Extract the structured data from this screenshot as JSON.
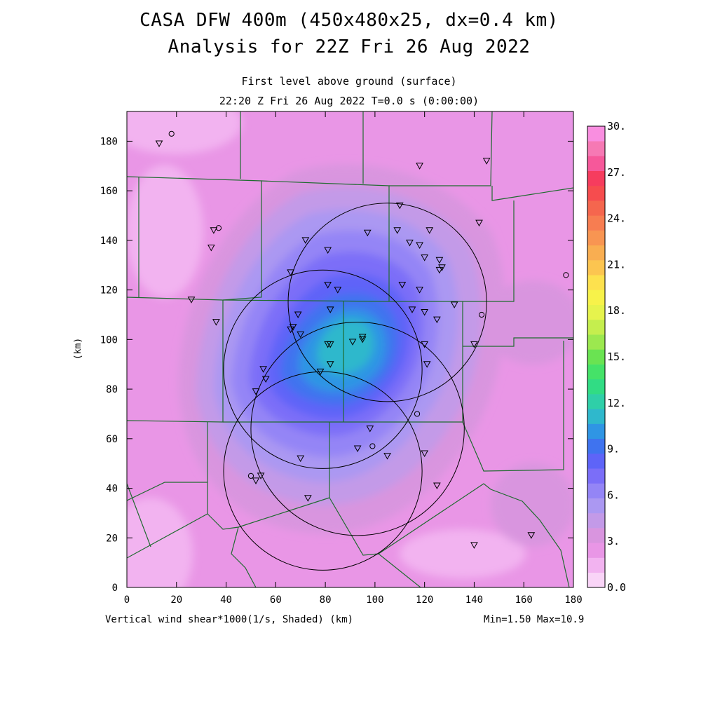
{
  "title_line1": "CASA DFW 400m (450x480x25, dx=0.4 km)",
  "title_line2": "Analysis for 22Z Fri 26 Aug 2022",
  "subtitle_line1": "First level above ground (surface)",
  "subtitle_line2": "22:20 Z Fri 26 Aug 2022   T=0.0 s (0:00:00)",
  "footer_left": "Vertical wind shear*1000(1/s, Shaded)  (km)",
  "footer_right": "Min=1.50 Max=10.9",
  "y_axis_label": "(km)",
  "x_ticks": [
    "0",
    "20",
    "40",
    "60",
    "80",
    "100",
    "120",
    "140",
    "160",
    "180"
  ],
  "y_ticks": [
    "0",
    "20",
    "40",
    "60",
    "80",
    "100",
    "120",
    "140",
    "160",
    "180"
  ],
  "colorbar": {
    "labels": [
      "30.",
      "27.",
      "24.",
      "21.",
      "18.",
      "15.",
      "12.",
      "9.",
      "6.",
      "3.",
      "0.0"
    ],
    "colors": [
      "#f9d4f7",
      "#f2b3f0",
      "#e996e6",
      "#d995df",
      "#c39ae8",
      "#ab98f2",
      "#9485f6",
      "#7b6ef8",
      "#5e64f8",
      "#3f73ef",
      "#2f95e4",
      "#2fb8cc",
      "#2fcfa8",
      "#31dc84",
      "#45e268",
      "#6ae352",
      "#9ce84f",
      "#c5ee4e",
      "#e6f34d",
      "#f7f24a",
      "#fde14e",
      "#fcc550",
      "#f9ae51",
      "#f89552",
      "#f77d51",
      "#f5664e",
      "#f64c4e",
      "#f63c5e",
      "#f6589a",
      "#f679b4",
      "#f98ee0"
    ]
  },
  "radar_rings": [
    {
      "x": 79,
      "y": 47,
      "r": 40
    },
    {
      "x": 79,
      "y": 88,
      "r": 40
    },
    {
      "x": 105,
      "y": 115,
      "r": 40
    },
    {
      "x": 93,
      "y": 64,
      "r": 43
    }
  ],
  "stations": [
    {
      "x": 13,
      "y": 179,
      "s": "tri"
    },
    {
      "x": 18,
      "y": 183,
      "s": "circ"
    },
    {
      "x": 35,
      "y": 144,
      "s": "tri"
    },
    {
      "x": 37,
      "y": 145,
      "s": "circ"
    },
    {
      "x": 34,
      "y": 137,
      "s": "tri"
    },
    {
      "x": 26,
      "y": 116,
      "s": "tri"
    },
    {
      "x": 36,
      "y": 107,
      "s": "tri"
    },
    {
      "x": 66,
      "y": 127,
      "s": "tri"
    },
    {
      "x": 72,
      "y": 140,
      "s": "tri"
    },
    {
      "x": 81,
      "y": 136,
      "s": "tri"
    },
    {
      "x": 97,
      "y": 143,
      "s": "tri"
    },
    {
      "x": 110,
      "y": 154,
      "s": "tri"
    },
    {
      "x": 118,
      "y": 170,
      "s": "tri"
    },
    {
      "x": 145,
      "y": 172,
      "s": "tri"
    },
    {
      "x": 142,
      "y": 147,
      "s": "tri"
    },
    {
      "x": 109,
      "y": 144,
      "s": "tri"
    },
    {
      "x": 114,
      "y": 139,
      "s": "tri"
    },
    {
      "x": 118,
      "y": 138,
      "s": "tri"
    },
    {
      "x": 122,
      "y": 144,
      "s": "tri"
    },
    {
      "x": 120,
      "y": 133,
      "s": "tri"
    },
    {
      "x": 126,
      "y": 132,
      "s": "tri"
    },
    {
      "x": 126,
      "y": 128,
      "s": "tri"
    },
    {
      "x": 127,
      "y": 129,
      "s": "tri"
    },
    {
      "x": 111,
      "y": 122,
      "s": "tri"
    },
    {
      "x": 118,
      "y": 120,
      "s": "tri"
    },
    {
      "x": 81,
      "y": 122,
      "s": "tri"
    },
    {
      "x": 85,
      "y": 120,
      "s": "tri"
    },
    {
      "x": 69,
      "y": 110,
      "s": "tri"
    },
    {
      "x": 82,
      "y": 112,
      "s": "tri"
    },
    {
      "x": 115,
      "y": 112,
      "s": "tri"
    },
    {
      "x": 120,
      "y": 111,
      "s": "tri"
    },
    {
      "x": 125,
      "y": 108,
      "s": "tri"
    },
    {
      "x": 132,
      "y": 114,
      "s": "tri"
    },
    {
      "x": 143,
      "y": 110,
      "s": "circ"
    },
    {
      "x": 66,
      "y": 104,
      "s": "tri"
    },
    {
      "x": 67,
      "y": 105,
      "s": "tri"
    },
    {
      "x": 70,
      "y": 102,
      "s": "tri"
    },
    {
      "x": 81,
      "y": 98,
      "s": "tri"
    },
    {
      "x": 82,
      "y": 98,
      "s": "tri"
    },
    {
      "x": 91,
      "y": 99,
      "s": "tri"
    },
    {
      "x": 95,
      "y": 101,
      "s": "tri"
    },
    {
      "x": 95,
      "y": 100,
      "s": "tri"
    },
    {
      "x": 120,
      "y": 98,
      "s": "tri"
    },
    {
      "x": 140,
      "y": 98,
      "s": "tri"
    },
    {
      "x": 82,
      "y": 90,
      "s": "tri"
    },
    {
      "x": 78,
      "y": 87,
      "s": "tri"
    },
    {
      "x": 121,
      "y": 90,
      "s": "tri"
    },
    {
      "x": 55,
      "y": 88,
      "s": "tri"
    },
    {
      "x": 56,
      "y": 84,
      "s": "tri"
    },
    {
      "x": 52,
      "y": 79,
      "s": "tri"
    },
    {
      "x": 117,
      "y": 70,
      "s": "circ"
    },
    {
      "x": 98,
      "y": 64,
      "s": "tri"
    },
    {
      "x": 99,
      "y": 57,
      "s": "circ"
    },
    {
      "x": 93,
      "y": 56,
      "s": "tri"
    },
    {
      "x": 105,
      "y": 53,
      "s": "tri"
    },
    {
      "x": 120,
      "y": 54,
      "s": "tri"
    },
    {
      "x": 70,
      "y": 52,
      "s": "tri"
    },
    {
      "x": 50,
      "y": 45,
      "s": "circ"
    },
    {
      "x": 52,
      "y": 43,
      "s": "tri"
    },
    {
      "x": 54,
      "y": 45,
      "s": "tri"
    },
    {
      "x": 73,
      "y": 36,
      "s": "tri"
    },
    {
      "x": 125,
      "y": 41,
      "s": "tri"
    },
    {
      "x": 140,
      "y": 17,
      "s": "tri"
    },
    {
      "x": 163,
      "y": 21,
      "s": "tri"
    },
    {
      "x": 177,
      "y": 126,
      "s": "circ"
    }
  ]
}
